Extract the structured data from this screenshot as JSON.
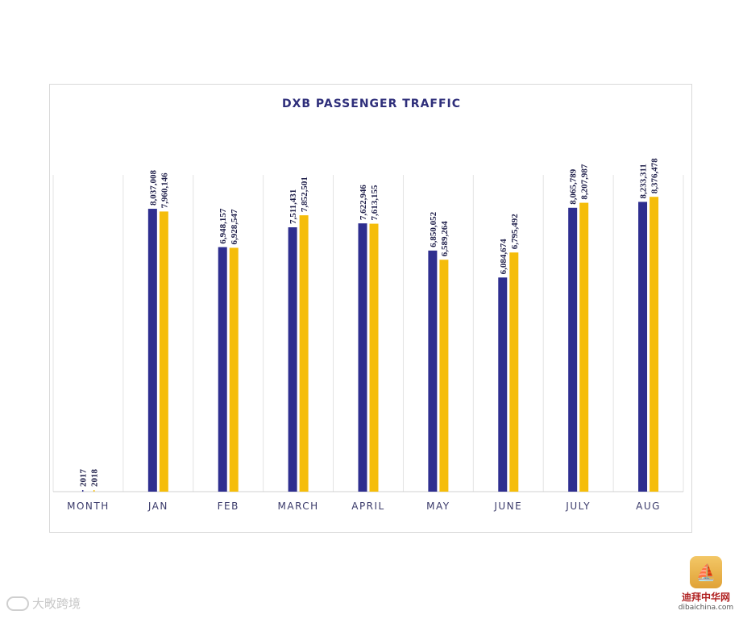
{
  "chart_data": {
    "type": "bar",
    "title": "DXB PASSENGER TRAFFIC",
    "categories": [
      "MONTH",
      "JAN",
      "FEB",
      "MARCH",
      "APRIL",
      "MAY",
      "JUNE",
      "JULY",
      "AUG"
    ],
    "series": [
      {
        "name": "2017",
        "color": "#2e2e8f",
        "values": [
          null,
          8037008,
          6948157,
          7511431,
          7622946,
          6850052,
          6084674,
          8065789,
          8233311
        ],
        "labels": [
          "2017",
          "8,037,008",
          "6,948,157",
          "7,511,431",
          "7,622,946",
          "6,850,052",
          "6,084,674",
          "8,065,789",
          "8,233,311"
        ]
      },
      {
        "name": "2018",
        "color": "#f5bd0a",
        "values": [
          null,
          7960146,
          6928547,
          7852501,
          7613155,
          6589264,
          6795492,
          8207987,
          8376478
        ],
        "labels": [
          "2018",
          "7,960,146",
          "6,928,547",
          "7,852,501",
          "7,613,155",
          "6,589,264",
          "6,795,492",
          "8,207,987",
          "8,376,478"
        ]
      }
    ],
    "ylim": [
      0,
      9000000
    ],
    "grid": "vertical separators",
    "legend": "none"
  },
  "watermarks": {
    "left_text": "大畋跨境",
    "right_cn": "迪拜中华网",
    "right_url": "dibaichina.com"
  }
}
